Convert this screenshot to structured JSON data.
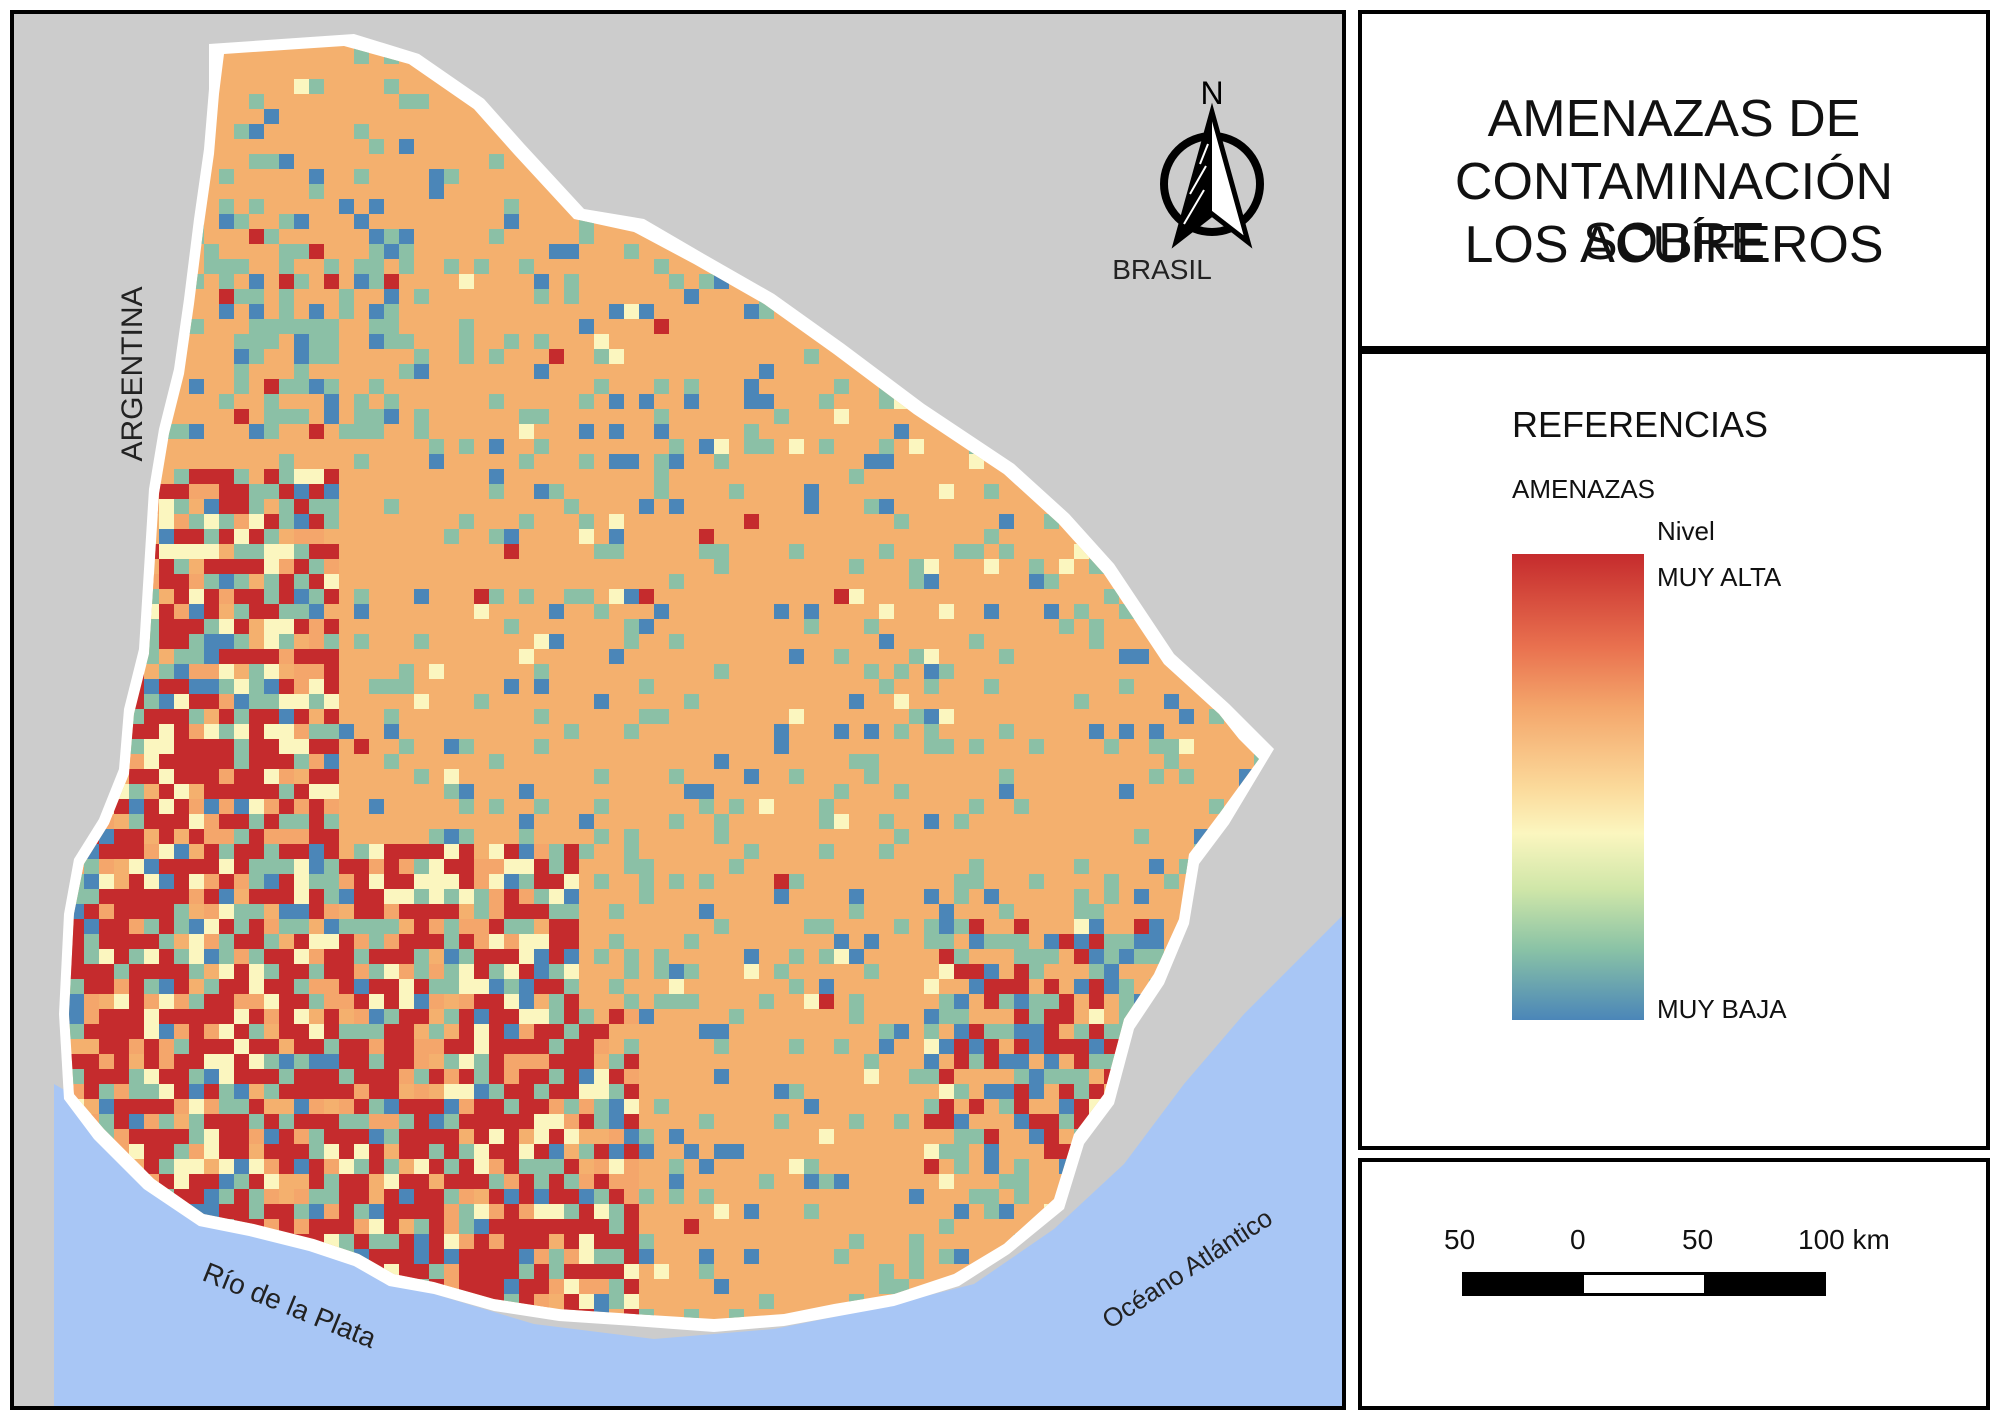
{
  "map": {
    "labels": {
      "argentina": "ARGENTINA",
      "brasil": "BRASIL",
      "rio_de_la_plata": "Río de la Plata",
      "oceano": "Océano Atlántico"
    },
    "north_arrow_label": "N",
    "colors": {
      "background": "#cccccc",
      "water": "#a8c6f5",
      "muy_alta": "#c52b2d",
      "alta": "#f4a66b",
      "media": "#fbf6bf",
      "baja": "#8bc0a6",
      "muy_baja": "#4b86b8"
    }
  },
  "title": {
    "line1": "AMENAZAS DE",
    "line2": "CONTAMINACIÓN SOBRE",
    "line3": "LOS ACUÍFEROS"
  },
  "legend": {
    "heading": "REFERENCIAS",
    "layer": "AMENAZAS",
    "field": "Nivel",
    "max_label": "MUY ALTA",
    "min_label": "MUY BAJA"
  },
  "scale": {
    "labels": [
      "50",
      "0",
      "50",
      "100 km"
    ]
  }
}
